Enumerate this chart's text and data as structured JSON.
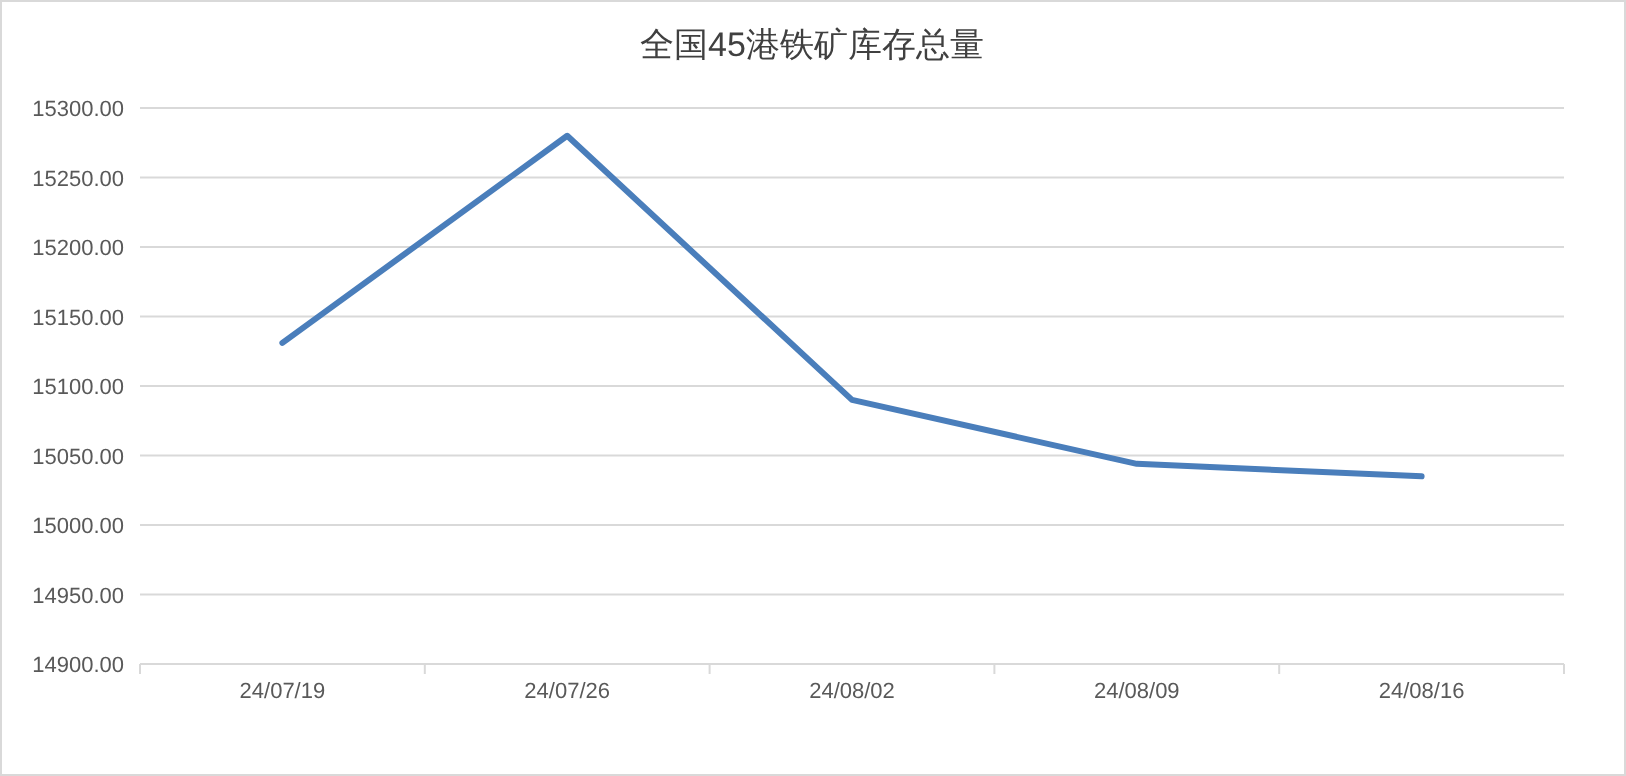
{
  "chart_data": {
    "type": "line",
    "title": "全国45港铁矿库存总量",
    "categories": [
      "24/07/19",
      "24/07/26",
      "24/08/02",
      "24/08/09",
      "24/08/16"
    ],
    "series": [
      {
        "color": "#4a7ebb",
        "values": [
          15131,
          15280,
          15090,
          15044,
          15035
        ]
      }
    ],
    "ylim": [
      14900,
      15300
    ],
    "yticks": [
      {
        "value": 14900,
        "label": "14900.00"
      },
      {
        "value": 14950,
        "label": "14950.00"
      },
      {
        "value": 15000,
        "label": "15000.00"
      },
      {
        "value": 15050,
        "label": "15050.00"
      },
      {
        "value": 15100,
        "label": "15100.00"
      },
      {
        "value": 15150,
        "label": "15150.00"
      },
      {
        "value": 15200,
        "label": "15200.00"
      },
      {
        "value": 15250,
        "label": "15250.00"
      },
      {
        "value": 15300,
        "label": "15300.00"
      }
    ],
    "grid": "y",
    "marker": "none",
    "line_style": "solid"
  }
}
